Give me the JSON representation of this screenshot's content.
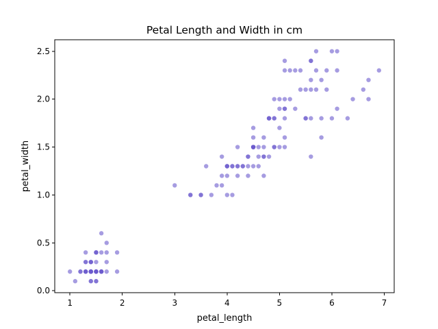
{
  "chart_data": {
    "type": "scatter",
    "title": "Petal Length and Width in cm",
    "xlabel": "petal_length",
    "ylabel": "petal_width",
    "xlim": [
      0.71,
      7.19
    ],
    "ylim": [
      -0.02,
      2.62
    ],
    "xticks": [
      1,
      2,
      3,
      4,
      5,
      6,
      7
    ],
    "yticks": [
      0.0,
      0.5,
      1.0,
      1.5,
      2.0,
      2.5
    ],
    "xtick_labels": [
      "1",
      "2",
      "3",
      "4",
      "5",
      "6",
      "7"
    ],
    "ytick_labels": [
      "0.0",
      "0.5",
      "1.0",
      "1.5",
      "2.0",
      "2.5"
    ],
    "grid": false,
    "marker_color": "#6a5acd",
    "marker_alpha": 0.6,
    "series": [
      {
        "x": [
          1.4,
          1.4,
          1.3,
          1.5,
          1.4,
          1.7,
          1.4,
          1.5,
          1.4,
          1.5,
          1.5,
          1.6,
          1.4,
          1.1,
          1.2,
          1.5,
          1.3,
          1.4,
          1.7,
          1.5,
          1.7,
          1.5,
          1.0,
          1.7,
          1.9,
          1.6,
          1.6,
          1.5,
          1.4,
          1.6,
          1.6,
          1.5,
          1.5,
          1.4,
          1.5,
          1.2,
          1.3,
          1.4,
          1.3,
          1.5,
          1.3,
          1.3,
          1.3,
          1.6,
          1.9,
          1.4,
          1.6,
          1.4,
          1.5,
          1.4,
          4.7,
          4.5,
          4.9,
          4.0,
          4.6,
          4.5,
          4.7,
          3.3,
          4.6,
          3.9,
          3.5,
          4.2,
          4.0,
          4.7,
          3.6,
          4.4,
          4.5,
          4.1,
          4.5,
          3.9,
          4.8,
          4.0,
          4.9,
          4.7,
          4.3,
          4.4,
          4.8,
          5.0,
          4.5,
          3.5,
          3.8,
          3.7,
          3.9,
          5.1,
          4.5,
          4.5,
          4.7,
          4.4,
          4.1,
          4.0,
          4.4,
          4.6,
          4.0,
          3.3,
          4.2,
          4.2,
          4.2,
          4.3,
          3.0,
          4.1,
          6.0,
          5.1,
          5.9,
          5.6,
          5.8,
          6.6,
          4.5,
          6.3,
          5.8,
          6.1,
          5.1,
          5.3,
          5.5,
          5.0,
          5.1,
          5.3,
          5.5,
          6.7,
          6.9,
          5.0,
          5.7,
          4.9,
          6.7,
          4.9,
          5.7,
          6.0,
          4.8,
          4.9,
          5.6,
          5.8,
          6.1,
          6.4,
          5.6,
          5.1,
          5.6,
          6.1,
          5.6,
          5.5,
          4.8,
          5.4,
          5.6,
          5.1,
          5.1,
          5.9,
          5.7,
          5.2,
          5.0,
          5.2,
          5.4,
          5.1
        ],
        "y": [
          0.2,
          0.2,
          0.2,
          0.2,
          0.2,
          0.4,
          0.3,
          0.2,
          0.2,
          0.1,
          0.2,
          0.2,
          0.1,
          0.1,
          0.2,
          0.4,
          0.4,
          0.3,
          0.3,
          0.3,
          0.2,
          0.4,
          0.2,
          0.5,
          0.2,
          0.2,
          0.4,
          0.2,
          0.2,
          0.2,
          0.2,
          0.4,
          0.1,
          0.2,
          0.2,
          0.2,
          0.2,
          0.1,
          0.2,
          0.2,
          0.3,
          0.3,
          0.2,
          0.6,
          0.4,
          0.3,
          0.2,
          0.2,
          0.2,
          0.2,
          1.4,
          1.5,
          1.5,
          1.3,
          1.5,
          1.3,
          1.6,
          1.0,
          1.3,
          1.4,
          1.0,
          1.5,
          1.0,
          1.4,
          1.3,
          1.4,
          1.5,
          1.0,
          1.5,
          1.1,
          1.8,
          1.3,
          1.5,
          1.2,
          1.3,
          1.4,
          1.4,
          1.7,
          1.5,
          1.0,
          1.1,
          1.0,
          1.2,
          1.6,
          1.5,
          1.6,
          1.5,
          1.3,
          1.3,
          1.3,
          1.2,
          1.4,
          1.2,
          1.0,
          1.3,
          1.2,
          1.3,
          1.3,
          1.1,
          1.3,
          2.5,
          1.9,
          2.1,
          1.8,
          2.2,
          2.1,
          1.7,
          1.8,
          1.8,
          2.5,
          2.0,
          1.9,
          2.1,
          2.0,
          2.4,
          2.3,
          1.8,
          2.2,
          2.3,
          1.5,
          2.3,
          2.0,
          2.0,
          1.8,
          2.1,
          1.8,
          1.8,
          1.8,
          2.1,
          1.6,
          1.9,
          2.0,
          2.2,
          1.5,
          1.4,
          2.3,
          2.4,
          1.8,
          1.8,
          2.1,
          2.4,
          2.3,
          1.9,
          2.3,
          2.5,
          2.3,
          1.9,
          2.0,
          2.3,
          1.8
        ]
      }
    ]
  }
}
